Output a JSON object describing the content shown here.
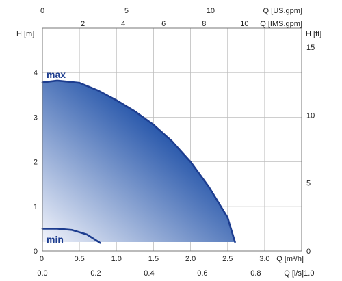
{
  "chart_data": {
    "type": "area",
    "grid": true,
    "axes": {
      "q_m3h": {
        "label": "Q [m³/h]",
        "ticks": [
          "0",
          "0.5",
          "1.0",
          "1.5",
          "2.0",
          "2.5",
          "3.0"
        ],
        "values": [
          0,
          0.5,
          1.0,
          1.5,
          2.0,
          2.5,
          3.0
        ],
        "range": [
          0,
          3.5
        ]
      },
      "q_ls": {
        "label": "Q [l/s]",
        "ticks": [
          "0.0",
          "0.2",
          "0.4",
          "0.6",
          "0.8",
          "1.0"
        ],
        "values": [
          0,
          0.2,
          0.4,
          0.6,
          0.8,
          1.0
        ]
      },
      "q_usgpm": {
        "label": "Q [US.gpm]",
        "ticks": [
          "0",
          "5",
          "10"
        ],
        "values": [
          0,
          5,
          10
        ]
      },
      "q_imsgpm": {
        "label": "Q [IMS.gpm]",
        "ticks": [
          "2",
          "4",
          "6",
          "8",
          "10"
        ],
        "values": [
          2,
          4,
          6,
          8,
          10
        ]
      },
      "h_m": {
        "label": "H [m]",
        "ticks": [
          "0",
          "1",
          "2",
          "3",
          "4"
        ],
        "values": [
          0,
          1,
          2,
          3,
          4
        ],
        "range": [
          0,
          5
        ]
      },
      "h_ft": {
        "label": "H [ft]",
        "ticks": [
          "0",
          "5",
          "10",
          "15"
        ],
        "values": [
          0,
          5,
          10,
          15
        ]
      }
    },
    "series": [
      {
        "name": "max",
        "color": "#1d3d8f",
        "x": [
          0,
          0.2,
          0.5,
          0.75,
          1.0,
          1.25,
          1.5,
          1.75,
          2.0,
          2.25,
          2.5,
          2.6
        ],
        "y": [
          3.78,
          3.82,
          3.77,
          3.6,
          3.38,
          3.13,
          2.83,
          2.46,
          2.0,
          1.43,
          0.75,
          0.2
        ]
      },
      {
        "name": "min",
        "color": "#1d3d8f",
        "x": [
          0,
          0.2,
          0.4,
          0.6,
          0.78
        ],
        "y": [
          0.5,
          0.5,
          0.47,
          0.37,
          0.18
        ]
      }
    ],
    "area_floor_y": 0.2,
    "fill_colors": [
      "#1c4ea6",
      "#f2f4fb"
    ]
  }
}
